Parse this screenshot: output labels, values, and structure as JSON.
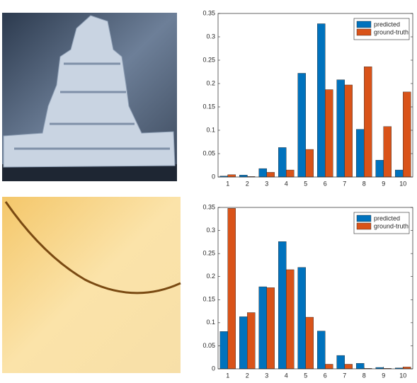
{
  "chart_data": [
    {
      "type": "bar",
      "categories": [
        "1",
        "2",
        "3",
        "4",
        "5",
        "6",
        "7",
        "8",
        "9",
        "10"
      ],
      "series": [
        {
          "name": "predicted",
          "color": "#0072bd",
          "values": [
            0.002,
            0.004,
            0.018,
            0.063,
            0.222,
            0.328,
            0.208,
            0.102,
            0.036,
            0.015
          ]
        },
        {
          "name": "ground-truth",
          "color": "#d95319",
          "values": [
            0.005,
            0.001,
            0.01,
            0.015,
            0.059,
            0.187,
            0.197,
            0.236,
            0.108,
            0.182
          ]
        }
      ],
      "ylim": [
        0,
        0.35
      ],
      "yticks": [
        0,
        0.05,
        0.1,
        0.15,
        0.2,
        0.25,
        0.3,
        0.35
      ],
      "legend": "upper right"
    },
    {
      "type": "bar",
      "categories": [
        "1",
        "2",
        "3",
        "4",
        "5",
        "6",
        "7",
        "8",
        "9",
        "10"
      ],
      "series": [
        {
          "name": "predicted",
          "color": "#0072bd",
          "values": [
            0.081,
            0.113,
            0.178,
            0.276,
            0.22,
            0.082,
            0.029,
            0.012,
            0.003,
            0.002
          ]
        },
        {
          "name": "ground-truth",
          "color": "#d95319",
          "values": [
            0.348,
            0.122,
            0.176,
            0.215,
            0.112,
            0.01,
            0.01,
            0.001,
            0.001,
            0.004
          ]
        }
      ],
      "ylim": [
        0,
        0.35
      ],
      "yticks": [
        0,
        0.05,
        0.1,
        0.15,
        0.2,
        0.25,
        0.3,
        0.35
      ],
      "legend": "upper right"
    }
  ]
}
